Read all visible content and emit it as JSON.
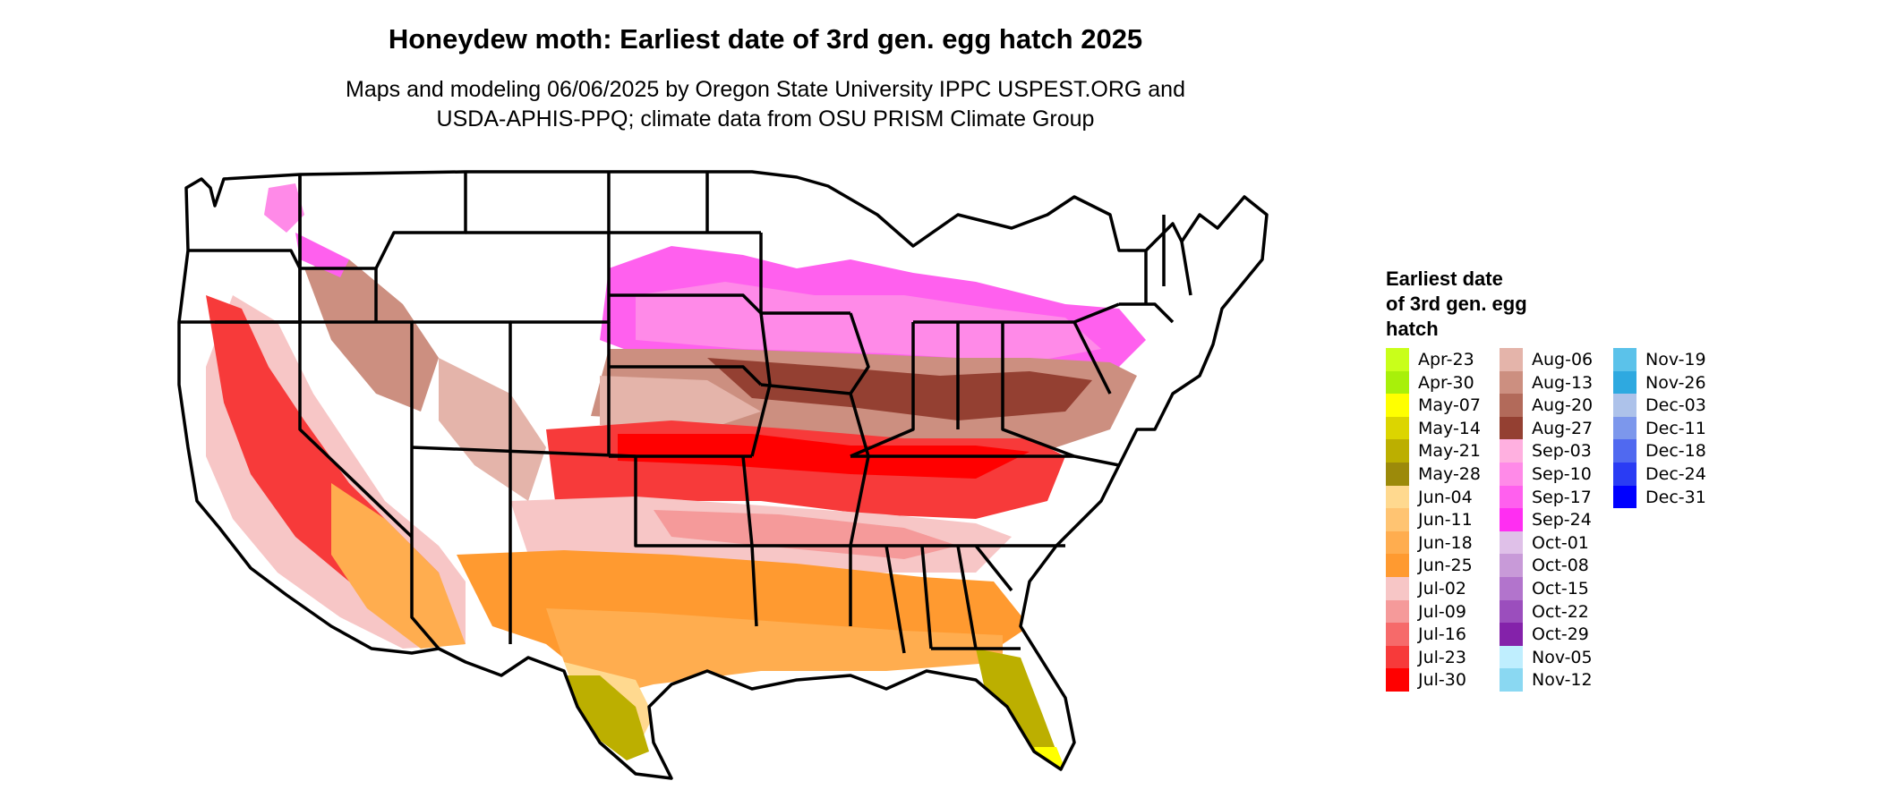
{
  "header": {
    "title": "Honeydew moth: Earliest date of 3rd gen. egg hatch 2025",
    "subtitle_line1": "Maps and modeling 06/06/2025 by Oregon State University IPPC USPEST.ORG and",
    "subtitle_line2": "USDA-APHIS-PPQ; climate data from OSU PRISM Climate Group"
  },
  "legend": {
    "title_line1": "Earliest date",
    "title_line2": "of 3rd gen. egg",
    "title_line3": "hatch",
    "columns": [
      [
        {
          "label": "Apr-23",
          "color": "#c9ff1a"
        },
        {
          "label": "Apr-30",
          "color": "#a8f00a"
        },
        {
          "label": "May-07",
          "color": "#ffff00"
        },
        {
          "label": "May-14",
          "color": "#dcd500"
        },
        {
          "label": "May-21",
          "color": "#bcaf00"
        },
        {
          "label": "May-28",
          "color": "#9c8a0a"
        },
        {
          "label": "Jun-04",
          "color": "#ffd98f"
        },
        {
          "label": "Jun-11",
          "color": "#ffc472"
        },
        {
          "label": "Jun-18",
          "color": "#ffad4f"
        },
        {
          "label": "Jun-25",
          "color": "#ff9a30"
        },
        {
          "label": "Jul-02",
          "color": "#f7c6c6"
        },
        {
          "label": "Jul-09",
          "color": "#f59a9a"
        },
        {
          "label": "Jul-16",
          "color": "#f66a6a"
        },
        {
          "label": "Jul-23",
          "color": "#f73a3a"
        },
        {
          "label": "Jul-30",
          "color": "#ff0000"
        }
      ],
      [
        {
          "label": "Aug-06",
          "color": "#e4b4aa"
        },
        {
          "label": "Aug-13",
          "color": "#cc8f80"
        },
        {
          "label": "Aug-20",
          "color": "#b26a5a"
        },
        {
          "label": "Aug-27",
          "color": "#944032"
        },
        {
          "label": "Sep-03",
          "color": "#ffb0e0"
        },
        {
          "label": "Sep-10",
          "color": "#ff8ae8"
        },
        {
          "label": "Sep-17",
          "color": "#ff60ee"
        },
        {
          "label": "Sep-24",
          "color": "#ff2ef2"
        },
        {
          "label": "Oct-01",
          "color": "#dfc0e8"
        },
        {
          "label": "Oct-08",
          "color": "#c89ad8"
        },
        {
          "label": "Oct-15",
          "color": "#b274cc"
        },
        {
          "label": "Oct-22",
          "color": "#9b4ebd"
        },
        {
          "label": "Oct-29",
          "color": "#8422aa"
        },
        {
          "label": "Nov-05",
          "color": "#bfeefe"
        },
        {
          "label": "Nov-12",
          "color": "#8ad8f2"
        }
      ],
      [
        {
          "label": "Nov-19",
          "color": "#5bc2ea"
        },
        {
          "label": "Nov-26",
          "color": "#2ea9e0"
        },
        {
          "label": "Dec-03",
          "color": "#adc2ea"
        },
        {
          "label": "Dec-11",
          "color": "#7c97ec"
        },
        {
          "label": "Dec-18",
          "color": "#5069f0"
        },
        {
          "label": "Dec-24",
          "color": "#2a3cf4"
        },
        {
          "label": "Dec-31",
          "color": "#0000ff"
        }
      ]
    ]
  }
}
